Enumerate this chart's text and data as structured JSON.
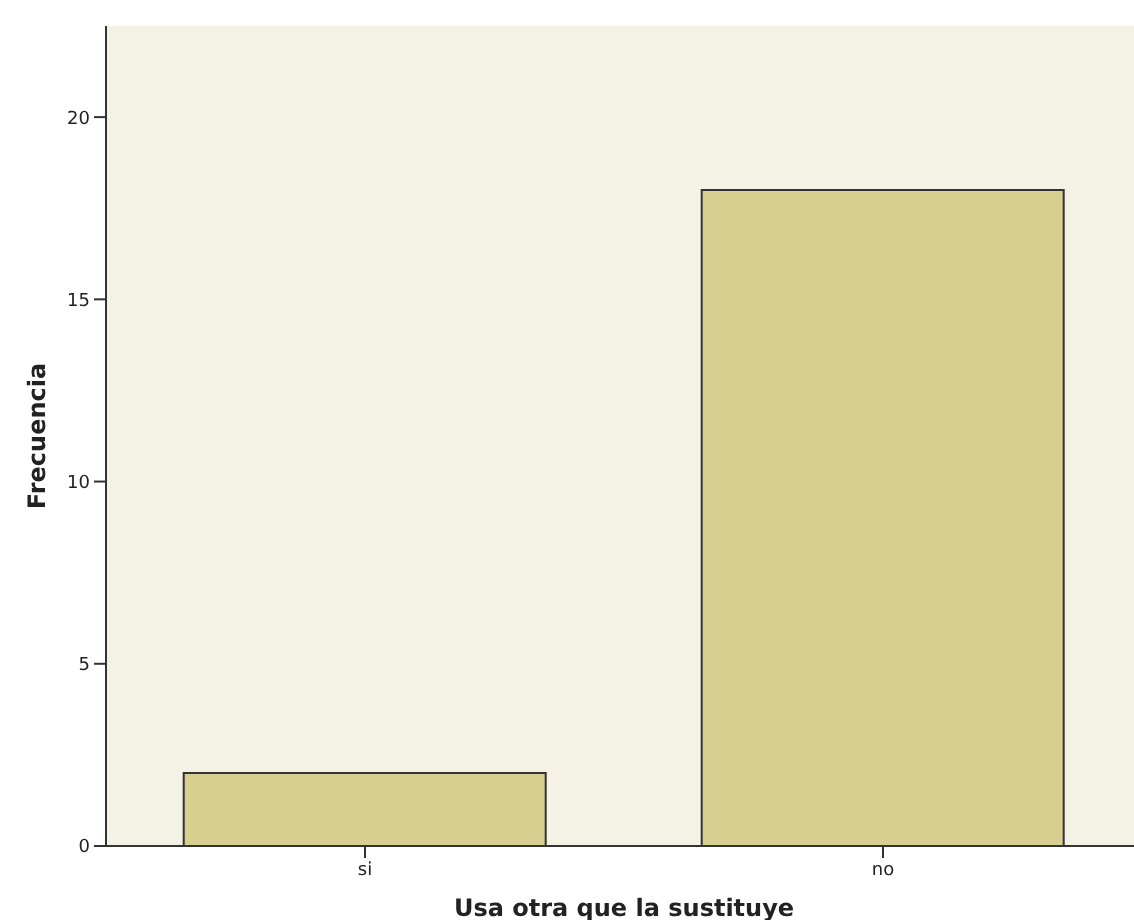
{
  "chart_data": {
    "type": "bar",
    "xlabel": "Usa otra que la sustituye",
    "ylabel": "Frecuencia",
    "categories": [
      "si",
      "no"
    ],
    "values": [
      2,
      18
    ],
    "color": "#d6cf8f",
    "ylim": [
      0,
      22.5
    ],
    "yticks": [
      0,
      5,
      10,
      15,
      20
    ],
    "grid": false,
    "legend": false
  }
}
